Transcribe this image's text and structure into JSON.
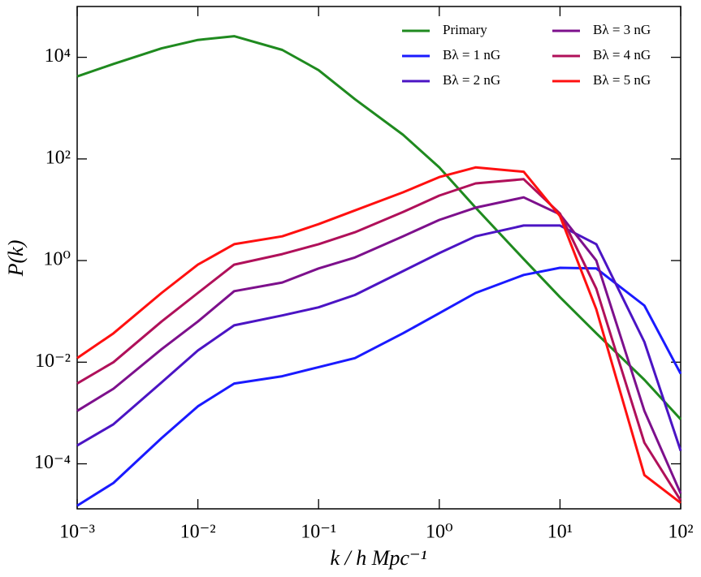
{
  "chart_data": {
    "type": "line",
    "xlabel": "k / h Mpc⁻¹",
    "ylabel": "P(k)",
    "log_x": true,
    "log_y": true,
    "legend": "upper right",
    "xlim": [
      0.001,
      100
    ],
    "ylim": [
      1.3e-05,
      100000
    ],
    "xticks": [
      {
        "value": 0.001,
        "label": "10⁻³"
      },
      {
        "value": 0.01,
        "label": "10⁻²"
      },
      {
        "value": 0.1,
        "label": "10⁻¹"
      },
      {
        "value": 1,
        "label": "10⁰"
      },
      {
        "value": 10,
        "label": "10¹"
      },
      {
        "value": 100,
        "label": "10²"
      }
    ],
    "yticks": [
      {
        "value": 0.0001,
        "label": "10⁻⁴"
      },
      {
        "value": 0.01,
        "label": "10⁻²"
      },
      {
        "value": 1,
        "label": "10⁰"
      },
      {
        "value": 100,
        "label": "10²"
      },
      {
        "value": 10000,
        "label": "10⁴"
      }
    ],
    "x": [
      0.001,
      0.002,
      0.005,
      0.01,
      0.02,
      0.05,
      0.1,
      0.2,
      0.5,
      1,
      2,
      5,
      10,
      20,
      50,
      100
    ],
    "series": [
      {
        "name": "Primary",
        "color": "#1f8a1f",
        "values": [
          4200,
          7400,
          15000,
          22000,
          26000,
          14000,
          5600,
          1500,
          300,
          68,
          11,
          1.07,
          0.19,
          0.037,
          0.0045,
          0.00075
        ]
      },
      {
        "name": "Bλ = 1 nG",
        "color": "#1a1aff",
        "values": [
          1.5e-05,
          4.2e-05,
          0.00032,
          0.00135,
          0.0038,
          0.0053,
          0.008,
          0.012,
          0.037,
          0.092,
          0.23,
          0.52,
          0.72,
          0.7,
          0.13,
          0.0059
        ]
      },
      {
        "name": "Bλ = 2 nG",
        "color": "#4b14c4",
        "values": [
          0.00023,
          0.0006,
          0.004,
          0.017,
          0.053,
          0.083,
          0.12,
          0.21,
          0.62,
          1.4,
          3,
          4.9,
          4.9,
          2.1,
          0.025,
          0.00018
        ]
      },
      {
        "name": "Bλ = 3 nG",
        "color": "#7d108c",
        "values": [
          0.0011,
          0.003,
          0.018,
          0.063,
          0.25,
          0.37,
          0.7,
          1.15,
          3,
          6.3,
          11,
          17.5,
          8.1,
          1,
          0.0011,
          2.6e-05
        ]
      },
      {
        "name": "Bλ = 4 nG",
        "color": "#b0105a",
        "values": [
          0.0038,
          0.01,
          0.063,
          0.23,
          0.83,
          1.34,
          2.1,
          3.6,
          9,
          19,
          33,
          40,
          8.4,
          0.28,
          0.00026,
          1.9e-05
        ]
      },
      {
        "name": "Bλ = 5 nG",
        "color": "#ff1010",
        "values": [
          0.012,
          0.037,
          0.23,
          0.83,
          2.1,
          3,
          5.2,
          9.7,
          22,
          44,
          68,
          56,
          7.5,
          0.11,
          6e-05,
          1.7e-05
        ]
      }
    ]
  }
}
